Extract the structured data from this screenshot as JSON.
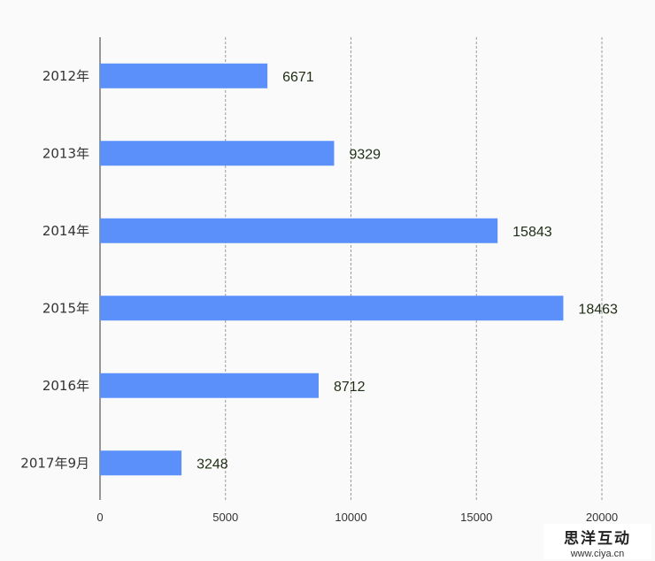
{
  "chart_data": {
    "type": "bar",
    "orientation": "horizontal",
    "title": "",
    "xlabel": "",
    "ylabel": "",
    "categories": [
      "2012年",
      "2013年",
      "2014年",
      "2015年",
      "2016年",
      "2017年9月"
    ],
    "values": [
      6671,
      9329,
      15843,
      18463,
      8712,
      3248
    ],
    "data_labels": [
      "6671",
      "9329",
      "15843",
      "18463",
      "8712",
      "3248"
    ],
    "xlim": [
      0,
      20000
    ],
    "xticks": [
      0,
      5000,
      10000,
      15000,
      20000
    ],
    "xtick_labels": [
      "0",
      "5000",
      "10000",
      "15000",
      "20000"
    ],
    "grid": "vertical dashed",
    "legend": "none",
    "colors": {
      "bar": "#5b8ff9",
      "grid": "#999999",
      "axis": "#333333",
      "label": "#333333",
      "value_label": "#1f2d14"
    }
  },
  "watermark": {
    "title": "思洋互动",
    "url": "www.ciya.cn"
  }
}
